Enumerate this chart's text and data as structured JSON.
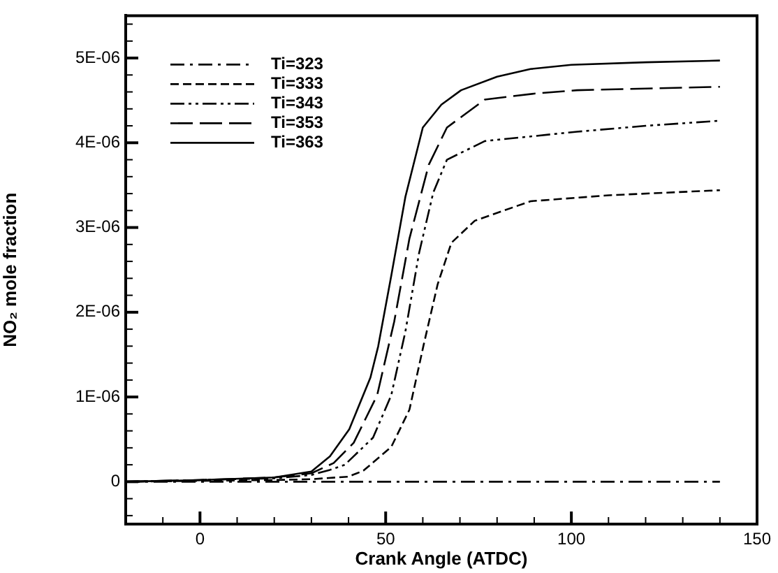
{
  "chart_data": {
    "type": "line",
    "xlabel": "Crank Angle (ATDC)",
    "ylabel": "NO₂ mole fraction",
    "legend": "top left",
    "grid": false,
    "xlim": [
      -20,
      150
    ],
    "ylim": [
      -5e-07,
      5.5e-06
    ],
    "xticks": [
      {
        "value": -10,
        "label": null
      },
      0,
      {
        "value": 10,
        "label": null
      },
      {
        "value": 20,
        "label": null
      },
      {
        "value": 30,
        "label": null
      },
      {
        "value": 40,
        "label": null
      },
      50,
      {
        "value": 60,
        "label": null
      },
      {
        "value": 70,
        "label": null
      },
      {
        "value": 80,
        "label": null
      },
      {
        "value": 90,
        "label": null
      },
      100,
      {
        "value": 110,
        "label": null
      },
      {
        "value": 120,
        "label": null
      },
      {
        "value": 130,
        "label": null
      },
      {
        "value": 140,
        "label": null
      },
      150
    ],
    "yticks": [
      {
        "value": -4e-07,
        "label": null
      },
      {
        "value": -2e-07,
        "label": null
      },
      0,
      {
        "value": 2e-07,
        "label": null
      },
      {
        "value": 4e-07,
        "label": null
      },
      {
        "value": 6e-07,
        "label": null
      },
      {
        "value": 8e-07,
        "label": null
      },
      {
        "value": 1e-06,
        "label": "1E-06"
      },
      {
        "value": 1.2e-06,
        "label": null
      },
      {
        "value": 1.4e-06,
        "label": null
      },
      {
        "value": 1.6e-06,
        "label": null
      },
      {
        "value": 1.8e-06,
        "label": null
      },
      {
        "value": 2e-06,
        "label": "2E-06"
      },
      {
        "value": 2.2e-06,
        "label": null
      },
      {
        "value": 2.4e-06,
        "label": null
      },
      {
        "value": 2.6e-06,
        "label": null
      },
      {
        "value": 2.8e-06,
        "label": null
      },
      {
        "value": 3e-06,
        "label": "3E-06"
      },
      {
        "value": 3.2e-06,
        "label": null
      },
      {
        "value": 3.4e-06,
        "label": null
      },
      {
        "value": 3.6e-06,
        "label": null
      },
      {
        "value": 3.8e-06,
        "label": null
      },
      {
        "value": 4e-06,
        "label": "4E-06"
      },
      {
        "value": 4.2e-06,
        "label": null
      },
      {
        "value": 4.4e-06,
        "label": null
      },
      {
        "value": 4.6e-06,
        "label": null
      },
      {
        "value": 4.8e-06,
        "label": null
      },
      {
        "value": 5e-06,
        "label": "5E-06"
      },
      {
        "value": 5.2e-06,
        "label": null
      },
      {
        "value": 5.4e-06,
        "label": null
      }
    ],
    "series": [
      {
        "name": "Ti=323",
        "color": "#000000",
        "line_style": "dashdot",
        "x": [
          -20,
          140
        ],
        "values": [
          0,
          0
        ]
      },
      {
        "name": "Ti=333",
        "color": "#000000",
        "line_style": "dashed",
        "x": [
          -20,
          0,
          20,
          30,
          40,
          44,
          51.5,
          56.4,
          60.2,
          64,
          67.7,
          74,
          89,
          110,
          140
        ],
        "values": [
          0,
          1e-08,
          2e-08,
          3e-08,
          6e-08,
          1.3e-07,
          4.1e-07,
          8.5e-07,
          1.61e-06,
          2.33e-06,
          2.82e-06,
          3.08e-06,
          3.31e-06,
          3.38e-06,
          3.44e-06
        ]
      },
      {
        "name": "Ti=343",
        "color": "#000000",
        "line_style": "dashdotdot",
        "x": [
          -20,
          0,
          20,
          30,
          35,
          39,
          46.6,
          51.5,
          55.3,
          59,
          62.8,
          66.5,
          76.7,
          101.5,
          120,
          140
        ],
        "values": [
          0,
          2e-08,
          4e-08,
          8e-08,
          1.4e-07,
          2e-07,
          5.2e-07,
          1.02e-06,
          1.77e-06,
          2.7e-06,
          3.41e-06,
          3.8e-06,
          4.02e-06,
          4.13e-06,
          4.2e-06,
          4.26e-06
        ]
      },
      {
        "name": "Ti=353",
        "color": "#000000",
        "line_style": "longdash",
        "x": [
          -20,
          0,
          20,
          30,
          36,
          41.4,
          47.7,
          52.3,
          56.4,
          61.6,
          66.5,
          76.7,
          90,
          101.5,
          120,
          140
        ],
        "values": [
          0,
          2e-08,
          5e-08,
          1e-07,
          2.2e-07,
          4.6e-07,
          1.02e-06,
          1.89e-06,
          2.87e-06,
          3.74e-06,
          4.18e-06,
          4.51e-06,
          4.58e-06,
          4.62e-06,
          4.64e-06,
          4.66e-06
        ]
      },
      {
        "name": "Ti=363",
        "color": "#000000",
        "line_style": "solid",
        "x": [
          -20,
          0,
          20,
          30,
          35,
          40.2,
          45.9,
          48,
          51.5,
          55.3,
          60,
          65,
          70.3,
          80,
          89,
          100,
          120,
          140
        ],
        "values": [
          0,
          2e-08,
          5e-08,
          1.2e-07,
          3e-07,
          6.2e-07,
          1.23e-06,
          1.6e-06,
          2.43e-06,
          3.36e-06,
          4.18e-06,
          4.45e-06,
          4.62e-06,
          4.78e-06,
          4.87e-06,
          4.92e-06,
          4.95e-06,
          4.97e-06
        ]
      }
    ]
  }
}
